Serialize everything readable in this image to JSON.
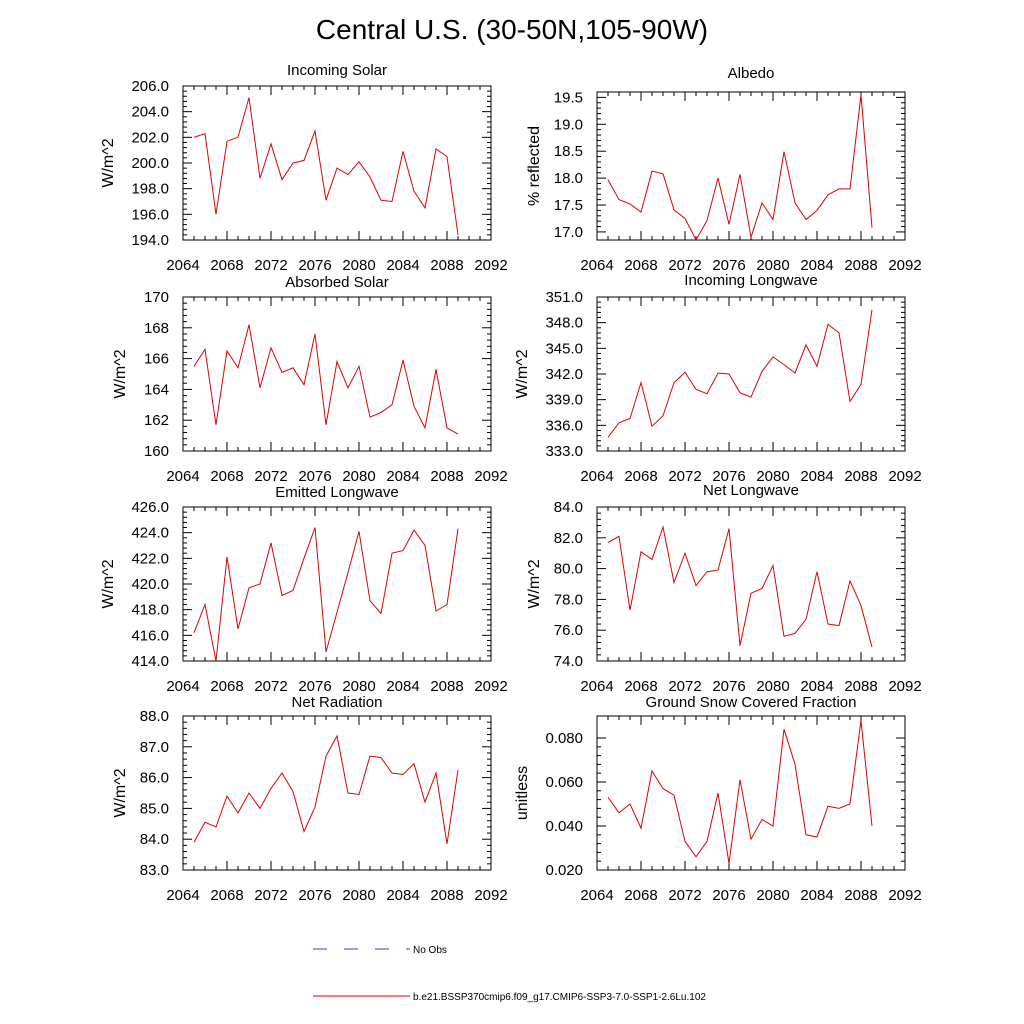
{
  "title": "Central U.S. (30-50N,105-90W)",
  "legend": {
    "entries": [
      {
        "label": "No Obs",
        "color": "#3b3bcf",
        "dash": true
      },
      {
        "label": "b.e21.BSSP370cmip6.f09_g17.CMIP6-SSP3-7.0-SSP1-2.6Lu.102",
        "color": "#e00000",
        "dash": false
      }
    ]
  },
  "colors": {
    "series": "#e00000",
    "frame": "#000000"
  },
  "chart_data": [
    {
      "type": "line",
      "title": "Incoming Solar",
      "ylabel": "W/m^2",
      "xlabel": "",
      "xlim": [
        2064,
        2092
      ],
      "ylim": [
        194,
        206
      ],
      "xticks": [
        2064,
        2068,
        2072,
        2076,
        2080,
        2084,
        2088,
        2092
      ],
      "yticks": [
        194,
        196,
        198,
        200,
        202,
        204,
        206
      ],
      "ytick_labels": [
        "194.0",
        "196.0",
        "198.0",
        "200.0",
        "202.0",
        "204.0",
        "206.0"
      ],
      "x": [
        2065,
        2066,
        2067,
        2068,
        2069,
        2070,
        2071,
        2072,
        2073,
        2074,
        2075,
        2076,
        2077,
        2078,
        2079,
        2080,
        2081,
        2082,
        2083,
        2084,
        2085,
        2086,
        2087,
        2088,
        2089
      ],
      "values": [
        202.0,
        202.3,
        196.0,
        201.7,
        202.0,
        205.1,
        198.8,
        201.5,
        198.7,
        200.0,
        200.2,
        202.5,
        197.1,
        199.6,
        199.1,
        200.1,
        198.9,
        197.1,
        197.0,
        200.9,
        197.8,
        196.5,
        201.1,
        200.5,
        194.4
      ]
    },
    {
      "type": "line",
      "title": "Albedo",
      "ylabel": "% reflected",
      "xlabel": "",
      "xlim": [
        2064,
        2092
      ],
      "ylim": [
        16.85,
        19.6
      ],
      "xticks": [
        2064,
        2068,
        2072,
        2076,
        2080,
        2084,
        2088,
        2092
      ],
      "yticks": [
        17.0,
        17.5,
        18.0,
        18.5,
        19.0,
        19.5
      ],
      "ytick_labels": [
        "17.0",
        "17.5",
        "18.0",
        "18.5",
        "19.0",
        "19.5"
      ],
      "x": [
        2065,
        2066,
        2067,
        2068,
        2069,
        2070,
        2071,
        2072,
        2073,
        2074,
        2075,
        2076,
        2077,
        2078,
        2079,
        2080,
        2081,
        2082,
        2083,
        2084,
        2085,
        2086,
        2087,
        2088,
        2089
      ],
      "values": [
        17.97,
        17.6,
        17.52,
        17.37,
        18.13,
        18.08,
        17.41,
        17.25,
        16.85,
        17.21,
        18.0,
        17.14,
        18.07,
        16.9,
        17.54,
        17.23,
        18.49,
        17.54,
        17.23,
        17.4,
        17.69,
        17.8,
        17.8,
        19.55,
        17.08
      ]
    },
    {
      "type": "line",
      "title": "Absorbed Solar",
      "ylabel": "W/m^2",
      "xlabel": "",
      "xlim": [
        2064,
        2092
      ],
      "ylim": [
        160,
        170
      ],
      "xticks": [
        2064,
        2068,
        2072,
        2076,
        2080,
        2084,
        2088,
        2092
      ],
      "yticks": [
        160,
        162,
        164,
        166,
        168,
        170
      ],
      "ytick_labels": [
        "160",
        "162",
        "164",
        "166",
        "168",
        "170"
      ],
      "x": [
        2065,
        2066,
        2067,
        2068,
        2069,
        2070,
        2071,
        2072,
        2073,
        2074,
        2075,
        2076,
        2077,
        2078,
        2079,
        2080,
        2081,
        2082,
        2083,
        2084,
        2085,
        2086,
        2087,
        2088,
        2089
      ],
      "values": [
        165.5,
        166.6,
        161.7,
        166.5,
        165.4,
        168.2,
        164.1,
        166.7,
        165.1,
        165.4,
        164.3,
        167.6,
        161.7,
        165.8,
        164.1,
        165.5,
        162.2,
        162.5,
        163.0,
        165.9,
        162.9,
        161.5,
        165.3,
        161.5,
        161.1
      ]
    },
    {
      "type": "line",
      "title": "Incoming Longwave",
      "ylabel": "W/m^2",
      "xlabel": "",
      "xlim": [
        2064,
        2092
      ],
      "ylim": [
        333,
        351
      ],
      "xticks": [
        2064,
        2068,
        2072,
        2076,
        2080,
        2084,
        2088,
        2092
      ],
      "yticks": [
        333,
        336,
        339,
        342,
        345,
        348,
        351
      ],
      "ytick_labels": [
        "333.0",
        "336.0",
        "339.0",
        "342.0",
        "345.0",
        "348.0",
        "351.0"
      ],
      "x": [
        2065,
        2066,
        2067,
        2068,
        2069,
        2070,
        2071,
        2072,
        2073,
        2074,
        2075,
        2076,
        2077,
        2078,
        2079,
        2080,
        2081,
        2082,
        2083,
        2084,
        2085,
        2086,
        2087,
        2088,
        2089
      ],
      "values": [
        334.6,
        336.3,
        336.8,
        341.0,
        335.9,
        337.1,
        341.0,
        342.2,
        340.2,
        339.7,
        342.1,
        342.0,
        339.8,
        339.3,
        342.3,
        344.0,
        343.1,
        342.1,
        345.4,
        342.9,
        347.8,
        346.8,
        338.8,
        340.8,
        349.5
      ]
    },
    {
      "type": "line",
      "title": "Emitted Longwave",
      "ylabel": "W/m^2",
      "xlabel": "",
      "xlim": [
        2064,
        2092
      ],
      "ylim": [
        414,
        426
      ],
      "xticks": [
        2064,
        2068,
        2072,
        2076,
        2080,
        2084,
        2088,
        2092
      ],
      "yticks": [
        414,
        416,
        418,
        420,
        422,
        424,
        426
      ],
      "ytick_labels": [
        "414.0",
        "416.0",
        "418.0",
        "420.0",
        "422.0",
        "424.0",
        "426.0"
      ],
      "x": [
        2065,
        2066,
        2067,
        2068,
        2069,
        2070,
        2071,
        2072,
        2073,
        2074,
        2075,
        2076,
        2077,
        2078,
        2079,
        2080,
        2081,
        2082,
        2083,
        2084,
        2085,
        2086,
        2087,
        2088,
        2089
      ],
      "values": [
        416.2,
        418.4,
        414.0,
        422.1,
        416.5,
        419.7,
        420.0,
        423.2,
        419.1,
        419.5,
        422.0,
        424.4,
        414.7,
        417.8,
        420.9,
        424.1,
        418.7,
        417.7,
        422.4,
        422.6,
        424.2,
        423.0,
        417.9,
        418.4,
        424.3
      ]
    },
    {
      "type": "line",
      "title": "Net Longwave",
      "ylabel": "W/m^2",
      "xlabel": "",
      "xlim": [
        2064,
        2092
      ],
      "ylim": [
        74,
        84
      ],
      "xticks": [
        2064,
        2068,
        2072,
        2076,
        2080,
        2084,
        2088,
        2092
      ],
      "yticks": [
        74,
        76,
        78,
        80,
        82,
        84
      ],
      "ytick_labels": [
        "74.0",
        "76.0",
        "78.0",
        "80.0",
        "82.0",
        "84.0"
      ],
      "x": [
        2065,
        2066,
        2067,
        2068,
        2069,
        2070,
        2071,
        2072,
        2073,
        2074,
        2075,
        2076,
        2077,
        2078,
        2079,
        2080,
        2081,
        2082,
        2083,
        2084,
        2085,
        2086,
        2087,
        2088,
        2089
      ],
      "values": [
        81.7,
        82.1,
        77.3,
        81.1,
        80.6,
        82.7,
        79.1,
        81.0,
        78.9,
        79.8,
        79.9,
        82.6,
        75.0,
        78.4,
        78.7,
        80.2,
        75.6,
        75.8,
        76.7,
        79.8,
        76.4,
        76.3,
        79.2,
        77.6,
        74.9
      ]
    },
    {
      "type": "line",
      "title": "Net Radiation",
      "ylabel": "W/m^2",
      "xlabel": "",
      "xlim": [
        2064,
        2092
      ],
      "ylim": [
        83,
        88
      ],
      "xticks": [
        2064,
        2068,
        2072,
        2076,
        2080,
        2084,
        2088,
        2092
      ],
      "yticks": [
        83,
        84,
        85,
        86,
        87,
        88
      ],
      "ytick_labels": [
        "83.0",
        "84.0",
        "85.0",
        "86.0",
        "87.0",
        "88.0"
      ],
      "x": [
        2065,
        2066,
        2067,
        2068,
        2069,
        2070,
        2071,
        2072,
        2073,
        2074,
        2075,
        2076,
        2077,
        2078,
        2079,
        2080,
        2081,
        2082,
        2083,
        2084,
        2085,
        2086,
        2087,
        2088,
        2089
      ],
      "values": [
        83.9,
        84.55,
        84.4,
        85.4,
        84.85,
        85.5,
        85.0,
        85.65,
        86.15,
        85.55,
        84.25,
        85.05,
        86.7,
        87.35,
        85.5,
        85.45,
        86.7,
        86.65,
        86.15,
        86.1,
        86.45,
        85.2,
        86.15,
        83.85,
        86.25
      ]
    },
    {
      "type": "line",
      "title": "Ground Snow Covered Fraction",
      "ylabel": "unitless",
      "xlabel": "",
      "xlim": [
        2064,
        2092
      ],
      "ylim": [
        0.02,
        0.09
      ],
      "xticks": [
        2064,
        2068,
        2072,
        2076,
        2080,
        2084,
        2088,
        2092
      ],
      "yticks": [
        0.02,
        0.04,
        0.06,
        0.08
      ],
      "ytick_labels": [
        "0.020",
        "0.040",
        "0.060",
        "0.080"
      ],
      "x": [
        2065,
        2066,
        2067,
        2068,
        2069,
        2070,
        2071,
        2072,
        2073,
        2074,
        2075,
        2076,
        2077,
        2078,
        2079,
        2080,
        2081,
        2082,
        2083,
        2084,
        2085,
        2086,
        2087,
        2088,
        2089
      ],
      "values": [
        0.053,
        0.046,
        0.05,
        0.039,
        0.065,
        0.057,
        0.054,
        0.033,
        0.026,
        0.033,
        0.055,
        0.023,
        0.061,
        0.034,
        0.043,
        0.04,
        0.084,
        0.068,
        0.036,
        0.035,
        0.049,
        0.048,
        0.05,
        0.088,
        0.04
      ]
    }
  ]
}
